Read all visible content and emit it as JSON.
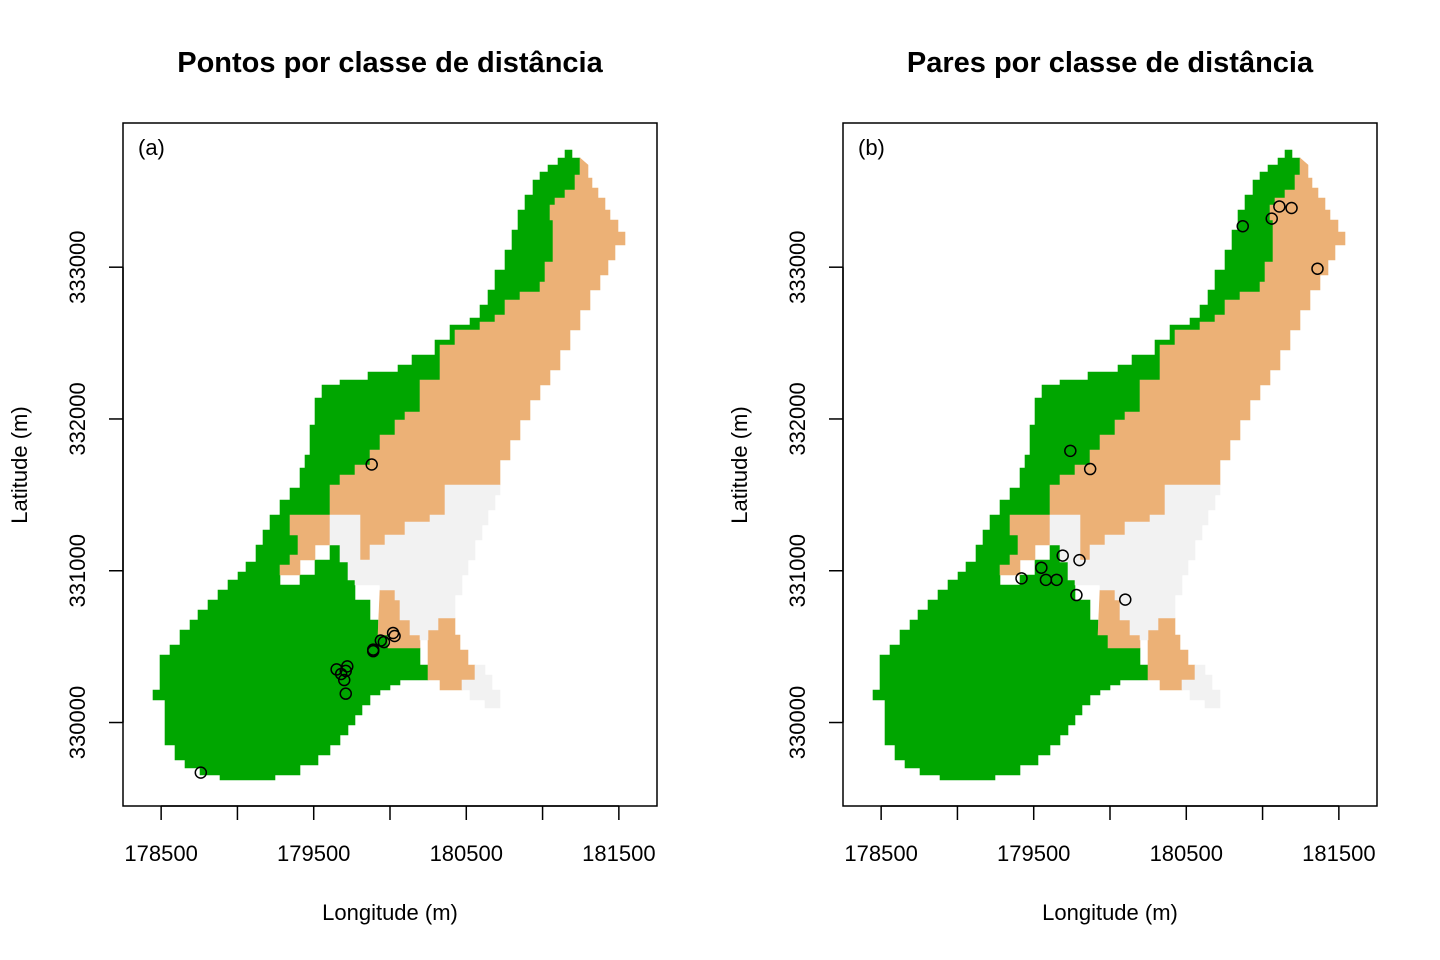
{
  "colors": {
    "near": "#00a600",
    "mid": "#ecb176",
    "far": "#f2f2f2"
  },
  "chart_data": [
    {
      "type": "scatter",
      "title": "Pontos por classe de distância",
      "panel_label": "(a)",
      "xlabel": "Longitude (m)",
      "ylabel": "Latitude (m)",
      "xlim": [
        178250,
        181750
      ],
      "ylim": [
        329450,
        333950
      ],
      "xticks": [
        178500,
        179000,
        179500,
        180000,
        180500,
        181000,
        181500
      ],
      "xtick_labels": [
        "178500",
        "",
        "179500",
        "",
        "180500",
        "",
        "181500"
      ],
      "yticks": [
        330000,
        331000,
        332000,
        333000
      ],
      "ytick_labels": [
        "330000",
        "331000",
        "332000",
        "333000"
      ],
      "background": "raster of the study area in three distance classes",
      "points": [
        [
          179880,
          331700
        ],
        [
          178760,
          329670
        ],
        [
          179650,
          330350
        ],
        [
          179680,
          330320
        ],
        [
          179710,
          330340
        ],
        [
          179720,
          330370
        ],
        [
          179700,
          330280
        ],
        [
          179710,
          330190
        ],
        [
          179890,
          330480
        ],
        [
          179890,
          330470
        ],
        [
          179940,
          330540
        ],
        [
          179960,
          330530
        ],
        [
          180020,
          330590
        ],
        [
          180030,
          330570
        ]
      ]
    },
    {
      "type": "scatter",
      "title": "Pares por classe de distância",
      "panel_label": "(b)",
      "xlabel": "Longitude (m)",
      "ylabel": "Latitude (m)",
      "xlim": [
        178250,
        181750
      ],
      "ylim": [
        329450,
        333950
      ],
      "xticks": [
        178500,
        179000,
        179500,
        180000,
        180500,
        181000,
        181500
      ],
      "xtick_labels": [
        "178500",
        "",
        "179500",
        "",
        "180500",
        "",
        "181500"
      ],
      "yticks": [
        330000,
        331000,
        332000,
        333000
      ],
      "ytick_labels": [
        "330000",
        "331000",
        "332000",
        "333000"
      ],
      "background": "raster of the study area in three distance classes",
      "points": [
        [
          180870,
          333270
        ],
        [
          181060,
          333320
        ],
        [
          181110,
          333400
        ],
        [
          181190,
          333390
        ],
        [
          181360,
          332990
        ],
        [
          179740,
          331790
        ],
        [
          179870,
          331670
        ],
        [
          179690,
          331100
        ],
        [
          179800,
          331070
        ],
        [
          179550,
          331020
        ],
        [
          179420,
          330950
        ],
        [
          179580,
          330940
        ],
        [
          179650,
          330940
        ],
        [
          179780,
          330840
        ],
        [
          180100,
          330810
        ]
      ]
    }
  ]
}
